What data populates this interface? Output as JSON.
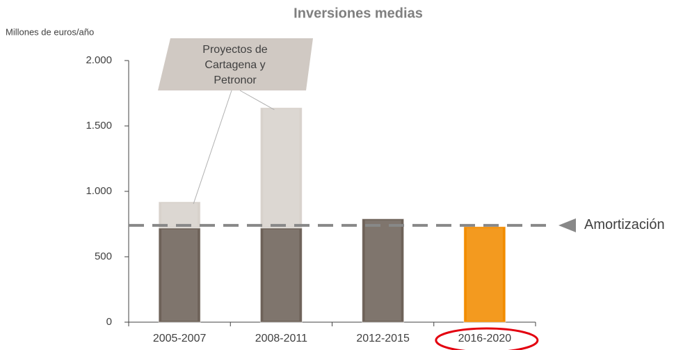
{
  "chart_data": {
    "type": "stacked_bar",
    "title": "Inversiones medias",
    "y_label": "Millones de euros/año",
    "categories": [
      "2005-2007",
      "2008-2011",
      "2012-2015",
      "2016-2020"
    ],
    "series": [
      {
        "color": "#6e6259",
        "values": [
          720,
          720,
          790,
          null
        ]
      },
      {
        "color": "#d8d2cc",
        "values": [
          200,
          920,
          null,
          null
        ]
      },
      {
        "color": "#f28c00",
        "values": [
          null,
          null,
          null,
          730
        ]
      }
    ],
    "ylim": [
      0,
      2000
    ],
    "yticks": [
      0,
      500,
      {
        "value": 1000,
        "label": "1.000"
      },
      {
        "value": 1500,
        "label": "1.500"
      },
      {
        "value": 2000,
        "label": "2.000"
      }
    ],
    "reference_line": {
      "value": 740,
      "label": "Amortización",
      "color": "#888888"
    },
    "annotation": {
      "lines": [
        "Proyectos de",
        "Cartagena y",
        "Petronor"
      ],
      "targets": [
        0,
        1
      ]
    },
    "highlight_category": 3,
    "highlight_color": "#e3000f"
  }
}
